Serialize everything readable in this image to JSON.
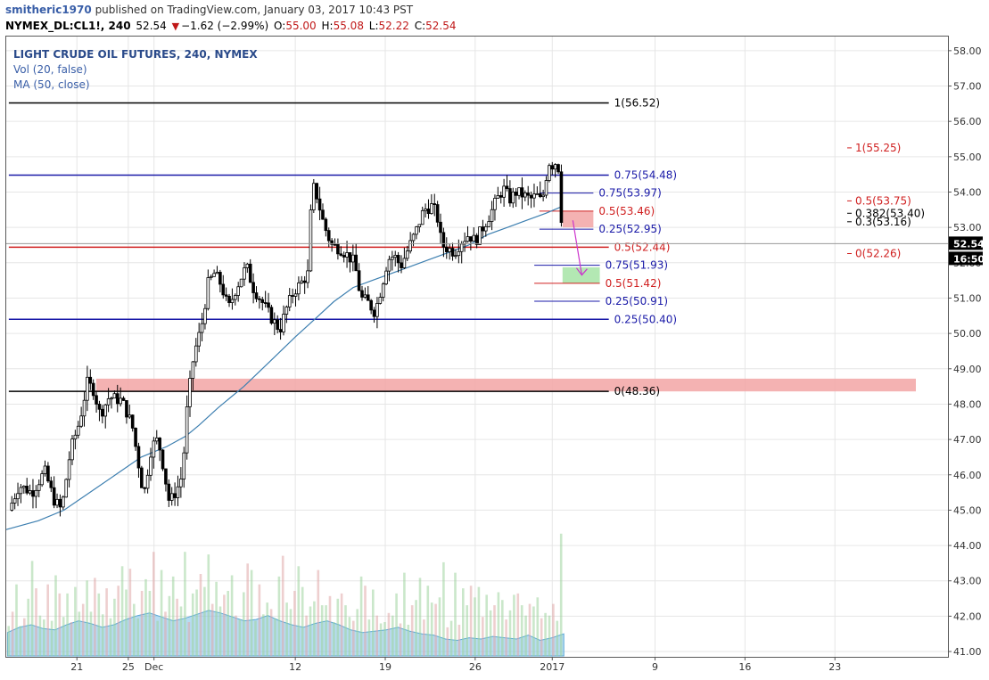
{
  "header": {
    "author": "smitheric1970",
    "published": "published on TradingView.com, January 03, 2017 10:43 PST",
    "symbol": "NYMEX_DL:CL1!, 240",
    "last": "52.54",
    "change": "−1.62 (−2.99%)",
    "o_label": "O:",
    "o_value": "55.00",
    "h_label": "H:",
    "h_value": "55.08",
    "l_label": "L:",
    "l_value": "52.22",
    "c_label": "C:",
    "c_value": "52.54"
  },
  "legend": {
    "title": "LIGHT CRUDE OIL FUTURES, 240, NYMEX",
    "vol": "Vol (20, false)",
    "ma": "MA (50, close)"
  },
  "chart_data": {
    "type": "candlestick",
    "y_ticks": [
      "58.00",
      "57.00",
      "56.00",
      "55.00",
      "54.00",
      "53.00",
      "52.00",
      "51.00",
      "50.00",
      "49.00",
      "48.00",
      "47.00",
      "46.00",
      "45.00",
      "44.00",
      "43.00",
      "42.00",
      "41.00"
    ],
    "ylim": [
      40.85,
      58.4
    ],
    "x_ticks": [
      {
        "day": 0,
        "label": "21"
      },
      {
        "day": 4,
        "label": "25"
      },
      {
        "day": 6,
        "label": "Dec"
      },
      {
        "day": 17,
        "label": "12"
      },
      {
        "day": 24,
        "label": "19"
      },
      {
        "day": 31,
        "label": "26"
      },
      {
        "day": 37,
        "label": "2017"
      },
      {
        "day": 45,
        "label": "9"
      },
      {
        "day": 52,
        "label": "16"
      },
      {
        "day": 59,
        "label": "23"
      }
    ],
    "xlim": [
      -5.5,
      67.8
    ],
    "price_path": [
      [
        -5.3,
        45.0
      ],
      [
        -4.5,
        45.7
      ],
      [
        -3.5,
        45.5
      ],
      [
        -2.5,
        46.1
      ],
      [
        -1.8,
        45.3
      ],
      [
        -1.2,
        45.0
      ],
      [
        -0.5,
        46.7
      ],
      [
        0.2,
        47.5
      ],
      [
        0.8,
        48.6
      ],
      [
        1.3,
        48.4
      ],
      [
        1.8,
        47.7
      ],
      [
        2.5,
        48.2
      ],
      [
        3.5,
        48.1
      ],
      [
        4.3,
        47.4
      ],
      [
        4.8,
        46.3
      ],
      [
        5.2,
        45.4
      ],
      [
        5.8,
        46.8
      ],
      [
        6.3,
        47.0
      ],
      [
        6.6,
        46.5
      ],
      [
        7.2,
        45.2
      ],
      [
        7.8,
        45.6
      ],
      [
        8.2,
        46.0
      ],
      [
        8.6,
        48.0
      ],
      [
        9.1,
        49.4
      ],
      [
        9.7,
        50.2
      ],
      [
        10.2,
        51.4
      ],
      [
        10.7,
        51.7
      ],
      [
        11.2,
        51.4
      ],
      [
        11.8,
        50.7
      ],
      [
        12.3,
        51.2
      ],
      [
        12.8,
        51.6
      ],
      [
        13.2,
        51.9
      ],
      [
        13.7,
        51.3
      ],
      [
        14.4,
        50.9
      ],
      [
        15.2,
        50.4
      ],
      [
        15.8,
        50.1
      ],
      [
        16.3,
        50.7
      ],
      [
        16.9,
        51.2
      ],
      [
        17.4,
        51.4
      ],
      [
        18.0,
        51.7
      ],
      [
        18.3,
        54.2
      ],
      [
        18.6,
        54.0
      ],
      [
        19.2,
        53.1
      ],
      [
        19.8,
        52.5
      ],
      [
        20.5,
        52.4
      ],
      [
        21.1,
        52.2
      ],
      [
        21.6,
        52.0
      ],
      [
        22.1,
        51.0
      ],
      [
        22.6,
        50.9
      ],
      [
        23.2,
        50.6
      ],
      [
        23.7,
        51.3
      ],
      [
        24.2,
        52.1
      ],
      [
        24.7,
        52.2
      ],
      [
        25.2,
        51.9
      ],
      [
        25.8,
        52.4
      ],
      [
        26.4,
        52.9
      ],
      [
        27.0,
        53.5
      ],
      [
        27.6,
        53.6
      ],
      [
        28.0,
        53.4
      ],
      [
        28.4,
        52.5
      ],
      [
        28.9,
        52.4
      ],
      [
        29.4,
        52.3
      ],
      [
        29.9,
        52.6
      ],
      [
        30.5,
        52.8
      ],
      [
        31.0,
        52.6
      ],
      [
        31.6,
        53.0
      ],
      [
        32.2,
        53.4
      ],
      [
        32.7,
        53.8
      ],
      [
        33.2,
        54.1
      ],
      [
        33.7,
        53.8
      ],
      [
        34.2,
        54.0
      ],
      [
        34.8,
        53.9
      ],
      [
        35.3,
        53.8
      ],
      [
        35.8,
        53.9
      ],
      [
        36.2,
        53.7
      ],
      [
        36.5,
        54.4
      ],
      [
        36.8,
        54.9
      ],
      [
        37.1,
        54.7
      ],
      [
        37.4,
        55.0
      ],
      [
        37.6,
        54.1
      ],
      [
        37.8,
        52.54
      ]
    ],
    "ma_path": [
      [
        -5.5,
        44.45
      ],
      [
        -3.0,
        44.7
      ],
      [
        -1.0,
        45.0
      ],
      [
        1.0,
        45.5
      ],
      [
        3.0,
        46.0
      ],
      [
        5.0,
        46.5
      ],
      [
        7.0,
        46.8
      ],
      [
        8.5,
        47.1
      ],
      [
        9.5,
        47.4
      ],
      [
        11.0,
        47.9
      ],
      [
        13.0,
        48.5
      ],
      [
        15.0,
        49.2
      ],
      [
        17.0,
        49.9
      ],
      [
        18.5,
        50.4
      ],
      [
        20.0,
        50.9
      ],
      [
        21.5,
        51.3
      ],
      [
        23.0,
        51.5
      ],
      [
        24.5,
        51.7
      ],
      [
        26.0,
        51.9
      ],
      [
        27.5,
        52.1
      ],
      [
        29.0,
        52.3
      ],
      [
        30.5,
        52.5
      ],
      [
        32.0,
        52.8
      ],
      [
        33.5,
        53.0
      ],
      [
        35.0,
        53.2
      ],
      [
        36.5,
        53.4
      ],
      [
        37.8,
        53.6
      ]
    ],
    "volume_max": 1.0,
    "volume": [
      0.23,
      0.34,
      0.55,
      0.23,
      0.29,
      0.44,
      0.73,
      0.52,
      0.31,
      0.28,
      0.55,
      0.27,
      0.62,
      0.48,
      0.3,
      0.48,
      0.26,
      0.53,
      0.34,
      0.4,
      0.58,
      0.34,
      0.6,
      0.48,
      0.32,
      0.52,
      0.29,
      0.44,
      0.54,
      0.69,
      0.51,
      0.67,
      0.4,
      0.29,
      0.5,
      0.59,
      0.5,
      0.8,
      0.27,
      0.66,
      0.34,
      0.46,
      0.61,
      0.44,
      0.38,
      0.8,
      0.26,
      0.48,
      0.51,
      0.63,
      0.53,
      0.78,
      0.4,
      0.57,
      0.38,
      0.47,
      0.5,
      0.62,
      0.31,
      0.28,
      0.49,
      0.71,
      0.66,
      0.27,
      0.55,
      0.32,
      0.41,
      0.36,
      0.29,
      0.61,
      0.77,
      0.41,
      0.36,
      0.5,
      0.69,
      0.53,
      0.31,
      0.38,
      0.42,
      0.66,
      0.39,
      0.39,
      0.46,
      0.26,
      0.44,
      0.48,
      0.39,
      0.3,
      0.27,
      0.36,
      0.61,
      0.54,
      0.28,
      0.51,
      0.31,
      0.25,
      0.26,
      0.33,
      0.31,
      0.48,
      0.25,
      0.64,
      0.24,
      0.39,
      0.43,
      0.6,
      0.28,
      0.54,
      0.41,
      0.4,
      0.45,
      0.72,
      0.22,
      0.27,
      0.64,
      0.24,
      0.52,
      0.39,
      0.54,
      0.45,
      0.53,
      0.3,
      0.47,
      0.35,
      0.39,
      0.49,
      0.43,
      0.28,
      0.35,
      0.47,
      0.48,
      0.39,
      0.31,
      0.4,
      0.38,
      0.45,
      0.29,
      0.33,
      0.31,
      0.4,
      0.27,
      0.94
    ],
    "volume_avg_path": [
      0.18,
      0.22,
      0.24,
      0.21,
      0.2,
      0.24,
      0.27,
      0.25,
      0.22,
      0.24,
      0.28,
      0.31,
      0.33,
      0.3,
      0.27,
      0.29,
      0.32,
      0.35,
      0.33,
      0.3,
      0.27,
      0.28,
      0.31,
      0.27,
      0.24,
      0.22,
      0.25,
      0.27,
      0.24,
      0.2,
      0.18,
      0.19,
      0.2,
      0.22,
      0.19,
      0.17,
      0.16,
      0.13,
      0.12,
      0.14,
      0.13,
      0.15,
      0.14,
      0.13,
      0.16,
      0.12,
      0.14,
      0.17
    ],
    "horizontal_levels": [
      {
        "label": "1(56.52)",
        "value": 56.52,
        "x1": -5.3,
        "x2": 41.4,
        "color": "#000000"
      },
      {
        "label": "0.75(54.48)",
        "value": 54.48,
        "x1": -5.3,
        "x2": 41.4,
        "color": "#1a1aa8"
      },
      {
        "label": "0.5(52.44)",
        "value": 52.44,
        "x1": -5.3,
        "x2": 41.4,
        "color": "#d02020"
      },
      {
        "label": "0.25(50.40)",
        "value": 50.4,
        "x1": -5.3,
        "x2": 41.4,
        "color": "#1a1aa8"
      },
      {
        "label": "0(48.36)",
        "value": 48.36,
        "x1": -5.3,
        "x2": 41.4,
        "color": "#000000"
      }
    ],
    "short_levels": [
      {
        "label": "0.75(53.97)",
        "value": 53.97,
        "x1": 36.0,
        "x2": 40.2,
        "color": "#1a1aa8"
      },
      {
        "label": "0.5(53.46)",
        "value": 53.46,
        "x1": 36.0,
        "x2": 40.2,
        "color": "#d02020"
      },
      {
        "label": "0.25(52.95)",
        "value": 52.95,
        "x1": 36.0,
        "x2": 40.2,
        "color": "#1a1aa8"
      },
      {
        "label": "0.75(51.93)",
        "value": 51.93,
        "x1": 35.6,
        "x2": 40.7,
        "color": "#1a1aa8"
      },
      {
        "label": "0.5(51.42)",
        "value": 51.42,
        "x1": 35.6,
        "x2": 40.7,
        "color": "#d02020"
      },
      {
        "label": "0.25(50.91)",
        "value": 50.91,
        "x1": 35.6,
        "x2": 40.7,
        "color": "#1a1aa8"
      }
    ],
    "right_levels": [
      {
        "label": "1(55.25)",
        "value": 55.25,
        "color": "#d02020"
      },
      {
        "label": "0.5(53.75)",
        "value": 53.75,
        "color": "#d02020"
      },
      {
        "label": "0.382(53.40)",
        "value": 53.4,
        "color": "#000000"
      },
      {
        "label": "0.3(53.16)",
        "value": 53.16,
        "color": "#000000"
      },
      {
        "label": "0(52.26)",
        "value": 52.26,
        "color": "#d02020"
      }
    ],
    "zones": [
      {
        "name": "demand",
        "x1": 1.5,
        "x2": 65.3,
        "y1": 48.36,
        "y2": 48.72,
        "color": "#f2a4a4"
      },
      {
        "name": "sell-zone",
        "x1": 37.8,
        "x2": 40.2,
        "y1": 53.0,
        "y2": 53.46,
        "color": "#f2a4a4"
      },
      {
        "name": "target-zone",
        "x1": 37.8,
        "x2": 40.7,
        "y1": 51.42,
        "y2": 51.87,
        "color": "#a6e4a6"
      }
    ],
    "arrow": {
      "from": [
        38.6,
        53.2
      ],
      "to": [
        39.3,
        51.65
      ],
      "color": "#cc33cc"
    },
    "current_price": {
      "label": "52.54",
      "value": 52.54
    },
    "countdown": {
      "label": "16:50"
    },
    "colors": {
      "accent": "#3a5fa8",
      "ma": "#3d7fb0",
      "grid": "#e6e6e6",
      "down": "#c01818"
    }
  }
}
